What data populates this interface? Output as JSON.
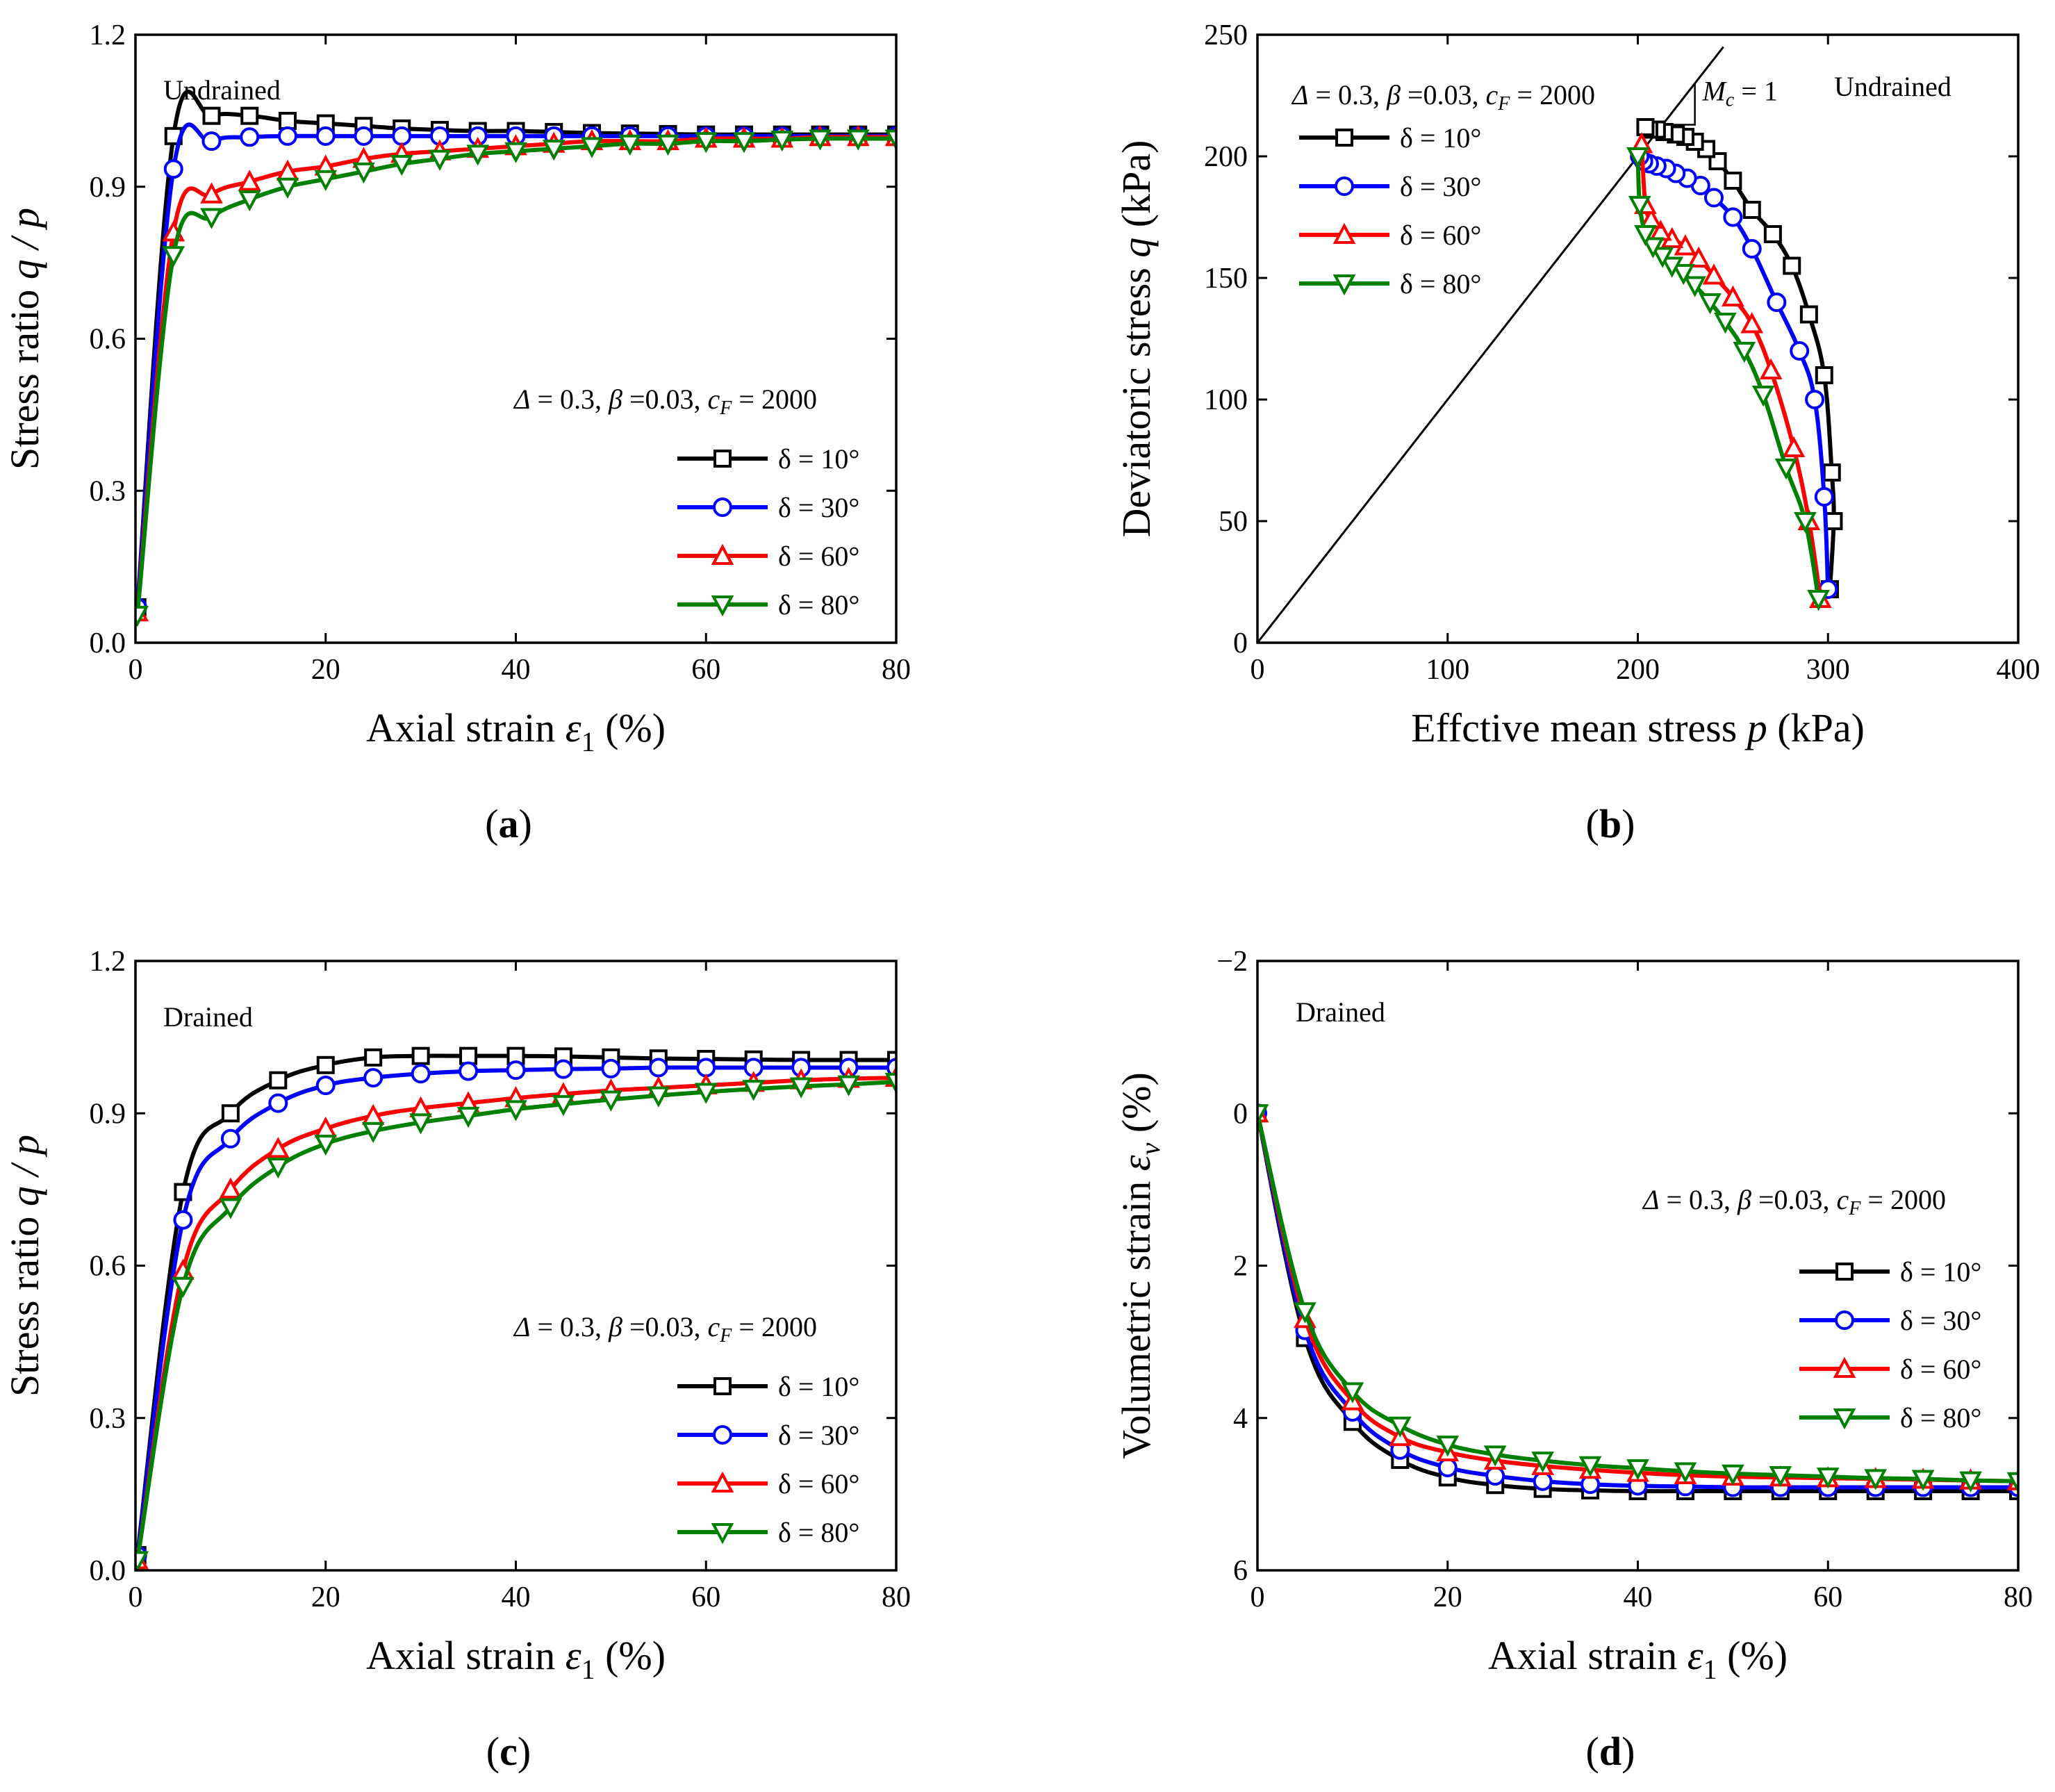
{
  "chart_data": [
    {
      "id": "a",
      "type": "line",
      "panel_label": "a",
      "xlabel_text": "Axial strain ",
      "xlabel_symbol": "ε",
      "xlabel_sub": "1",
      "xlabel_unit": " (%)",
      "ylabel_text": "Stress ratio ",
      "ylabel_symbol": "q / p",
      "xlim": [
        0,
        80
      ],
      "ylim": [
        0,
        1.2
      ],
      "xticks": [
        0,
        20,
        40,
        60,
        80
      ],
      "xtick_labels": [
        "0",
        "20",
        "40",
        "60",
        "80"
      ],
      "yticks": [
        0,
        0.3,
        0.6,
        0.9,
        1.2
      ],
      "ytick_labels": [
        "0.0",
        "0.3",
        "0.6",
        "0.9",
        "1.2"
      ],
      "condition": "Undrained",
      "parameters": "Δ = 0.3, β =0.03, cF = 2000",
      "legend": [
        "δ = 10°",
        "δ = 30°",
        "δ = 60°",
        "δ = 80°"
      ],
      "series": [
        {
          "name": "δ = 10°",
          "color": "#000000",
          "marker": "square",
          "x": [
            0.2,
            4,
            8,
            12,
            16,
            20,
            24,
            28,
            32,
            36,
            40,
            44,
            48,
            52,
            56,
            60,
            64,
            68,
            72,
            76,
            80
          ],
          "y": [
            0.07,
            1.0,
            1.04,
            1.04,
            1.03,
            1.025,
            1.02,
            1.015,
            1.012,
            1.01,
            1.01,
            1.008,
            1.006,
            1.005,
            1.004,
            1.003,
            1.003,
            1.003,
            1.003,
            1.003,
            1.003
          ]
        },
        {
          "name": "δ = 30°",
          "color": "#0000FF",
          "marker": "circle",
          "x": [
            0.2,
            4,
            8,
            12,
            16,
            20,
            24,
            28,
            32,
            36,
            40,
            44,
            48,
            52,
            56,
            60,
            64,
            68,
            72,
            76,
            80
          ],
          "y": [
            0.07,
            0.935,
            0.99,
            0.998,
            1.0,
            1.0,
            1.0,
            1.0,
            1.0,
            1.0,
            1.0,
            1.0,
            1.0,
            1.0,
            1.0,
            1.0,
            1.0,
            1.0,
            1.0,
            1.0,
            1.0
          ]
        },
        {
          "name": "δ = 60°",
          "color": "#FF0000",
          "marker": "triangle-up",
          "x": [
            0.2,
            4,
            8,
            12,
            16,
            20,
            24,
            28,
            32,
            36,
            40,
            44,
            48,
            52,
            56,
            60,
            64,
            68,
            72,
            76,
            80
          ],
          "y": [
            0.06,
            0.81,
            0.885,
            0.91,
            0.93,
            0.94,
            0.955,
            0.965,
            0.97,
            0.975,
            0.98,
            0.985,
            0.99,
            0.99,
            0.99,
            0.995,
            0.995,
            0.995,
            0.998,
            0.998,
            0.998
          ]
        },
        {
          "name": "δ = 80°",
          "color": "#008000",
          "marker": "triangle-down",
          "x": [
            0.2,
            4,
            8,
            12,
            16,
            20,
            24,
            28,
            32,
            36,
            40,
            44,
            48,
            52,
            56,
            60,
            64,
            68,
            72,
            76,
            80
          ],
          "y": [
            0.055,
            0.765,
            0.84,
            0.875,
            0.9,
            0.915,
            0.93,
            0.945,
            0.955,
            0.965,
            0.97,
            0.975,
            0.98,
            0.985,
            0.985,
            0.99,
            0.99,
            0.993,
            0.995,
            0.995,
            0.995
          ]
        }
      ]
    },
    {
      "id": "b",
      "type": "line",
      "panel_label": "b",
      "xlabel_text": "Effctive mean stress ",
      "xlabel_symbol": "p",
      "xlabel_sub": "",
      "xlabel_unit": " (kPa)",
      "ylabel_text": "Deviatoric stress ",
      "ylabel_symbol": "q",
      "ylabel_unit": " (kPa)",
      "xlim": [
        0,
        400
      ],
      "ylim": [
        0,
        250
      ],
      "xticks": [
        0,
        100,
        200,
        300,
        400
      ],
      "xtick_labels": [
        "0",
        "100",
        "200",
        "300",
        "400"
      ],
      "yticks": [
        0,
        50,
        100,
        150,
        200,
        250
      ],
      "ytick_labels": [
        "0",
        "50",
        "100",
        "150",
        "200",
        "250"
      ],
      "condition": "Undrained",
      "parameters": "Δ = 0.3, β =0.03, cF = 2000",
      "csl_label": "Mc = 1",
      "critical_state_line": {
        "slope": 1.0,
        "x": [
          0,
          245
        ],
        "y": [
          0,
          245
        ]
      },
      "legend": [
        "δ = 10°",
        "δ = 30°",
        "δ = 60°",
        "δ = 80°"
      ],
      "series": [
        {
          "name": "δ = 10°",
          "color": "#000000",
          "marker": "square",
          "x": [
            301,
            303,
            302,
            298,
            290,
            281,
            271,
            260,
            250,
            242,
            236,
            230,
            225,
            220,
            214,
            210,
            206,
            204
          ],
          "y": [
            22,
            50,
            70,
            110,
            135,
            155,
            168,
            178,
            190,
            198,
            203,
            206,
            208,
            209,
            210,
            211,
            211,
            212
          ]
        },
        {
          "name": "δ = 30°",
          "color": "#0000FF",
          "marker": "circle",
          "x": [
            300,
            298,
            293,
            285,
            273,
            260,
            250,
            240,
            233,
            226,
            220,
            215,
            210,
            206,
            203,
            201
          ],
          "y": [
            22,
            60,
            100,
            120,
            140,
            162,
            175,
            183,
            188,
            191,
            193,
            195,
            196,
            197,
            198,
            200
          ]
        },
        {
          "name": "δ = 60°",
          "color": "#FF0000",
          "marker": "triangle-up",
          "x": [
            296,
            290,
            282,
            270,
            260,
            250,
            240,
            232,
            225,
            218,
            212,
            207,
            204,
            202
          ],
          "y": [
            18,
            50,
            80,
            112,
            131,
            142,
            151,
            158,
            163,
            166,
            169,
            174,
            180,
            205
          ]
        },
        {
          "name": "δ = 80°",
          "color": "#008000",
          "marker": "triangle-down",
          "x": [
            295,
            288,
            278,
            266,
            256,
            246,
            238,
            230,
            224,
            218,
            213,
            208,
            204,
            201,
            200
          ],
          "y": [
            18,
            50,
            72,
            102,
            120,
            132,
            140,
            147,
            152,
            155,
            159,
            163,
            168,
            180,
            200
          ]
        }
      ]
    },
    {
      "id": "c",
      "type": "line",
      "panel_label": "c",
      "xlabel_text": "Axial strain ",
      "xlabel_symbol": "ε",
      "xlabel_sub": "1",
      "xlabel_unit": " (%)",
      "ylabel_text": "Stress ratio ",
      "ylabel_symbol": "q / p",
      "xlim": [
        0,
        80
      ],
      "ylim": [
        0,
        1.2
      ],
      "xticks": [
        0,
        20,
        40,
        60,
        80
      ],
      "xtick_labels": [
        "0",
        "20",
        "40",
        "60",
        "80"
      ],
      "yticks": [
        0,
        0.3,
        0.6,
        0.9,
        1.2
      ],
      "ytick_labels": [
        "0.0",
        "0.3",
        "0.6",
        "0.9",
        "1.2"
      ],
      "condition": "Drained",
      "parameters": "Δ = 0.3, β =0.03, cF = 2000",
      "legend": [
        "δ = 10°",
        "δ = 30°",
        "δ = 60°",
        "δ = 80°"
      ],
      "series": [
        {
          "name": "δ = 10°",
          "color": "#000000",
          "marker": "square",
          "x": [
            0.2,
            5,
            10,
            15,
            20,
            25,
            30,
            35,
            40,
            45,
            50,
            55,
            60,
            65,
            70,
            75,
            80
          ],
          "y": [
            0.03,
            0.745,
            0.9,
            0.965,
            0.995,
            1.01,
            1.013,
            1.013,
            1.013,
            1.012,
            1.01,
            1.008,
            1.007,
            1.006,
            1.005,
            1.005,
            1.005
          ]
        },
        {
          "name": "δ = 30°",
          "color": "#0000FF",
          "marker": "circle",
          "x": [
            0.2,
            5,
            10,
            15,
            20,
            25,
            30,
            35,
            40,
            45,
            50,
            55,
            60,
            65,
            70,
            75,
            80
          ],
          "y": [
            0.03,
            0.69,
            0.85,
            0.92,
            0.955,
            0.97,
            0.978,
            0.983,
            0.985,
            0.987,
            0.988,
            0.99,
            0.99,
            0.99,
            0.99,
            0.99,
            0.99
          ]
        },
        {
          "name": "δ = 60°",
          "color": "#FF0000",
          "marker": "triangle-up",
          "x": [
            0.2,
            5,
            10,
            15,
            20,
            25,
            30,
            35,
            40,
            45,
            50,
            55,
            60,
            65,
            70,
            75,
            80
          ],
          "y": [
            0.02,
            0.59,
            0.75,
            0.83,
            0.87,
            0.895,
            0.91,
            0.92,
            0.93,
            0.938,
            0.945,
            0.95,
            0.955,
            0.96,
            0.965,
            0.968,
            0.97
          ]
        },
        {
          "name": "δ = 80°",
          "color": "#008000",
          "marker": "triangle-down",
          "x": [
            0.2,
            5,
            10,
            15,
            20,
            25,
            30,
            35,
            40,
            45,
            50,
            55,
            60,
            65,
            70,
            75,
            80
          ],
          "y": [
            0.02,
            0.56,
            0.715,
            0.795,
            0.84,
            0.865,
            0.882,
            0.895,
            0.908,
            0.918,
            0.927,
            0.935,
            0.942,
            0.948,
            0.953,
            0.957,
            0.962
          ]
        }
      ]
    },
    {
      "id": "d",
      "type": "line",
      "panel_label": "d",
      "xlabel_text": "Axial strain ",
      "xlabel_symbol": "ε",
      "xlabel_sub": "1",
      "xlabel_unit": " (%)",
      "ylabel_text": "Volumetric strain ",
      "ylabel_symbol": "ε",
      "ylabel_sub": "v",
      "ylabel_unit": " (%)",
      "xlim": [
        0,
        80
      ],
      "ylim": [
        6,
        -2
      ],
      "y_inverted": true,
      "xticks": [
        0,
        20,
        40,
        60,
        80
      ],
      "xtick_labels": [
        "0",
        "20",
        "40",
        "60",
        "80"
      ],
      "yticks": [
        -2,
        0,
        2,
        4,
        6
      ],
      "ytick_labels": [
        "−2",
        "0",
        "2",
        "4",
        "6"
      ],
      "condition": "Drained",
      "parameters": "Δ = 0.3, β =0.03, cF = 2000",
      "legend": [
        "δ = 10°",
        "δ = 30°",
        "δ = 60°",
        "δ = 80°"
      ],
      "series": [
        {
          "name": "δ = 10°",
          "color": "#000000",
          "marker": "square",
          "x": [
            0,
            5,
            10,
            15,
            20,
            25,
            30,
            35,
            40,
            45,
            50,
            55,
            60,
            65,
            70,
            75,
            80
          ],
          "y": [
            0.0,
            2.95,
            4.05,
            4.55,
            4.78,
            4.88,
            4.93,
            4.95,
            4.96,
            4.96,
            4.96,
            4.96,
            4.96,
            4.96,
            4.96,
            4.96,
            4.96
          ]
        },
        {
          "name": "δ = 30°",
          "color": "#0000FF",
          "marker": "circle",
          "x": [
            0,
            5,
            10,
            15,
            20,
            25,
            30,
            35,
            40,
            45,
            50,
            55,
            60,
            65,
            70,
            75,
            80
          ],
          "y": [
            0.0,
            2.85,
            3.92,
            4.42,
            4.65,
            4.76,
            4.83,
            4.87,
            4.89,
            4.9,
            4.91,
            4.91,
            4.91,
            4.91,
            4.91,
            4.91,
            4.91
          ]
        },
        {
          "name": "δ = 60°",
          "color": "#FF0000",
          "marker": "triangle-up",
          "x": [
            0,
            5,
            10,
            15,
            20,
            25,
            30,
            35,
            40,
            45,
            50,
            55,
            60,
            65,
            70,
            75,
            80
          ],
          "y": [
            0.0,
            2.7,
            3.78,
            4.25,
            4.45,
            4.56,
            4.63,
            4.68,
            4.72,
            4.75,
            4.77,
            4.78,
            4.79,
            4.8,
            4.81,
            4.82,
            4.83
          ]
        },
        {
          "name": "δ = 80°",
          "color": "#008000",
          "marker": "triangle-down",
          "x": [
            0,
            5,
            10,
            15,
            20,
            25,
            30,
            35,
            40,
            45,
            50,
            55,
            60,
            65,
            70,
            75,
            80
          ],
          "y": [
            0.0,
            2.6,
            3.65,
            4.1,
            4.35,
            4.48,
            4.56,
            4.62,
            4.66,
            4.7,
            4.73,
            4.75,
            4.77,
            4.79,
            4.8,
            4.82,
            4.83
          ]
        }
      ]
    }
  ]
}
